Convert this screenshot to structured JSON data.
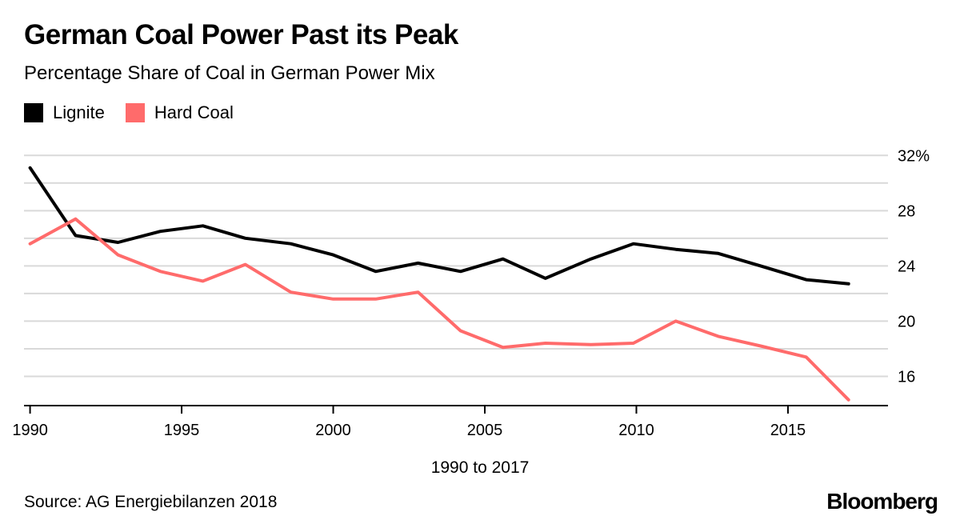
{
  "title": "German Coal Power Past its Peak",
  "subtitle": "Percentage Share of Coal in German Power Mix",
  "range_note": "1990 to 2017",
  "source": "Source: AG Energiebilanzen 2018",
  "brand": "Bloomberg",
  "legend": [
    {
      "label": "Lignite",
      "color": "#000000"
    },
    {
      "label": "Hard Coal",
      "color": "#ff6b6b"
    }
  ],
  "chart_data": {
    "type": "line",
    "title": "German Coal Power Past its Peak",
    "subtitle": "Percentage Share of Coal in German Power Mix",
    "xlabel": "1990 to 2017",
    "ylabel": "",
    "xlim": [
      1989.8,
      2018.3
    ],
    "ylim": [
      14,
      33
    ],
    "x_ticks": [
      1990,
      1995,
      2000,
      2005,
      2010,
      2015
    ],
    "x_tick_labels": [
      "1990",
      "1995",
      "2000",
      "2005",
      "2010",
      "2015"
    ],
    "y_ticks": [
      16,
      18,
      20,
      22,
      24,
      26,
      28,
      30,
      32
    ],
    "y_tick_labels": {
      "16": "16",
      "20": "20",
      "24": "24",
      "28": "28",
      "32": "32%"
    },
    "y_axis_position": "right",
    "grid": true,
    "legend_position": "top-left",
    "series": [
      {
        "name": "Lignite",
        "color": "#000000",
        "x": [
          1990,
          1991.5,
          1992.9,
          1994.3,
          1995.7,
          1997.1,
          1998.6,
          2000,
          2001.4,
          2002.8,
          2004.2,
          2005.6,
          2007,
          2008.5,
          2009.9,
          2011.3,
          2012.7,
          2014.1,
          2015.6,
          2017
        ],
        "values": [
          31.1,
          26.2,
          25.7,
          26.5,
          26.9,
          26.0,
          25.6,
          24.8,
          23.6,
          24.2,
          23.6,
          24.5,
          23.1,
          24.5,
          25.6,
          25.2,
          24.9,
          24.0,
          23.0,
          22.7
        ]
      },
      {
        "name": "Hard Coal",
        "color": "#ff6b6b",
        "x": [
          1990,
          1991.5,
          1992.9,
          1994.3,
          1995.7,
          1997.1,
          1998.6,
          2000,
          2001.4,
          2002.8,
          2004.2,
          2005.6,
          2007,
          2008.5,
          2009.9,
          2011.3,
          2012.7,
          2014.1,
          2015.6,
          2017
        ],
        "values": [
          25.6,
          27.4,
          24.8,
          23.6,
          22.9,
          24.1,
          22.1,
          21.6,
          21.6,
          22.1,
          19.3,
          18.1,
          18.4,
          18.3,
          18.4,
          20.0,
          18.9,
          18.2,
          17.4,
          14.3
        ]
      }
    ]
  }
}
